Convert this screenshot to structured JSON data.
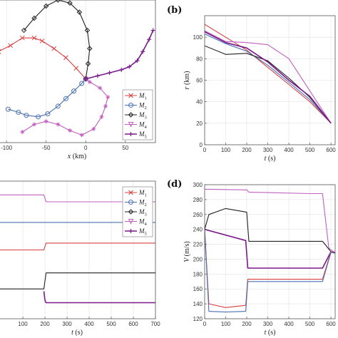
{
  "figure": {
    "colors": {
      "M1": "#d94040",
      "M2": "#4a70b0",
      "M3": "#222222",
      "M4": "#c060c0",
      "M5": "#7a1a8a"
    }
  },
  "chart_data": [
    {
      "id": "a",
      "type": "line",
      "panel_label": "",
      "xlabel": "x (km)",
      "ylabel": "",
      "xlim": [
        -110,
        88
      ],
      "ylim": [
        -42,
        52
      ],
      "xticks": [
        -100,
        -50,
        0,
        50
      ],
      "yticks": [],
      "grid": true,
      "legend": {
        "placement": "lower-right",
        "entries": [
          "M1",
          "M2",
          "M3",
          "M4",
          "M5"
        ]
      },
      "series": [
        {
          "name": "M1",
          "marker": "x",
          "color": "#d94040",
          "x": [
            -110,
            -95,
            -80,
            -65,
            -55,
            -40,
            -25,
            -12,
            0
          ],
          "y": [
            18,
            22,
            27,
            27,
            25,
            20,
            14,
            7,
            0
          ]
        },
        {
          "name": "M2",
          "marker": "o",
          "color": "#4a70b0",
          "x": [
            -98,
            -85,
            -75,
            -60,
            -48,
            -35,
            -25,
            -15,
            -5,
            0
          ],
          "y": [
            -20,
            -22,
            -24,
            -25,
            -23,
            -18,
            -13,
            -8,
            -3,
            0
          ]
        },
        {
          "name": "M3",
          "marker": "diamond",
          "color": "#222222",
          "x": [
            -78,
            -65,
            -50,
            -35,
            -20,
            -8,
            2,
            5,
            3,
            0
          ],
          "y": [
            32,
            40,
            48,
            52,
            50,
            44,
            32,
            20,
            10,
            0
          ]
        },
        {
          "name": "M4",
          "marker": "star",
          "color": "#c060c0",
          "x": [
            -80,
            -65,
            -50,
            -35,
            -20,
            -5,
            10,
            20,
            25,
            28,
            18,
            5,
            0
          ],
          "y": [
            -35,
            -30,
            -28,
            -30,
            -34,
            -37,
            -33,
            -25,
            -18,
            -12,
            -6,
            -2,
            0
          ]
        },
        {
          "name": "M5",
          "marker": "plus",
          "color": "#7a1a8a",
          "x": [
            0,
            15,
            30,
            45,
            55,
            65,
            72,
            80,
            85
          ],
          "y": [
            0,
            2,
            4,
            6,
            8,
            12,
            18,
            26,
            32
          ]
        }
      ]
    },
    {
      "id": "b",
      "type": "line",
      "panel_label": "(b)",
      "xlabel": "t (s)",
      "ylabel": "r (km)",
      "xlim": [
        0,
        620
      ],
      "ylim": [
        0,
        120
      ],
      "xticks": [
        0,
        100,
        200,
        300,
        400,
        500,
        600
      ],
      "yticks": [
        0,
        20,
        40,
        60,
        80,
        100
      ],
      "grid": true,
      "series": [
        {
          "name": "M1",
          "color": "#d94040",
          "x": [
            0,
            100,
            200,
            300,
            400,
            500,
            600
          ],
          "y": [
            112,
            100,
            88,
            72,
            56,
            40,
            20
          ]
        },
        {
          "name": "M2",
          "color": "#4a70b0",
          "x": [
            0,
            100,
            200,
            300,
            400,
            500,
            600
          ],
          "y": [
            103,
            94,
            87,
            74,
            58,
            42,
            20
          ]
        },
        {
          "name": "M3",
          "color": "#222222",
          "x": [
            0,
            100,
            200,
            300,
            400,
            500,
            600
          ],
          "y": [
            92,
            84,
            85,
            78,
            62,
            44,
            20
          ]
        },
        {
          "name": "M4",
          "color": "#c060c0",
          "x": [
            0,
            100,
            200,
            300,
            400,
            500,
            600
          ],
          "y": [
            106,
            96,
            95,
            93,
            80,
            50,
            20
          ]
        },
        {
          "name": "M5",
          "color": "#7a1a8a",
          "x": [
            0,
            100,
            200,
            300,
            400,
            500,
            600
          ],
          "y": [
            105,
            95,
            90,
            77,
            60,
            45,
            20
          ]
        }
      ]
    },
    {
      "id": "c",
      "type": "line",
      "panel_label": "",
      "xlabel": "t (s)",
      "ylabel": "",
      "xlim": [
        -10,
        700
      ],
      "ylim": [
        0,
        6
      ],
      "xticks": [
        100,
        200,
        300,
        400,
        500,
        600,
        700
      ],
      "yticks": [],
      "grid": true,
      "legend": {
        "placement": "upper-right",
        "entries": [
          "M1",
          "M2",
          "M3",
          "M4",
          "M5"
        ]
      },
      "series": [
        {
          "name": "M4",
          "color": "#c060c0",
          "x": [
            -10,
            195,
            205,
            700
          ],
          "y": [
            5.4,
            5.4,
            5.1,
            5.1
          ]
        },
        {
          "name": "M2",
          "color": "#4a70b0",
          "x": [
            -10,
            700
          ],
          "y": [
            4.2,
            4.2
          ]
        },
        {
          "name": "M1",
          "color": "#d94040",
          "x": [
            -10,
            195,
            205,
            700
          ],
          "y": [
            3.0,
            3.0,
            3.3,
            3.3
          ]
        },
        {
          "name": "M3",
          "color": "#222222",
          "x": [
            -10,
            195,
            205,
            700
          ],
          "y": [
            1.3,
            1.3,
            2.0,
            2.0
          ]
        },
        {
          "name": "M5",
          "color": "#7a1a8a",
          "x": [
            195,
            200,
            205,
            700
          ],
          "y": [
            1.2,
            0.8,
            0.7,
            0.7
          ]
        }
      ]
    },
    {
      "id": "d",
      "type": "line",
      "panel_label": "(d)",
      "xlabel": "t (s)",
      "ylabel": "V (m/s)",
      "xlim": [
        0,
        620
      ],
      "ylim": [
        120,
        300
      ],
      "xticks": [
        0,
        100,
        200,
        300,
        400,
        500,
        600
      ],
      "yticks": [
        120,
        140,
        160,
        180,
        200,
        220,
        240,
        260,
        280,
        300
      ],
      "grid": true,
      "series": [
        {
          "name": "M4",
          "color": "#c060c0",
          "x": [
            0,
            200,
            210,
            500,
            560,
            590,
            620
          ],
          "y": [
            294,
            293,
            290,
            288,
            288,
            215,
            208
          ]
        },
        {
          "name": "M3",
          "color": "#222222",
          "x": [
            0,
            20,
            100,
            200,
            210,
            500,
            560,
            600,
            620
          ],
          "y": [
            240,
            260,
            268,
            263,
            224,
            224,
            224,
            210,
            208
          ]
        },
        {
          "name": "M5",
          "color": "#7a1a8a",
          "x": [
            0,
            195,
            205,
            500,
            560,
            600,
            620
          ],
          "y": [
            240,
            225,
            188,
            188,
            188,
            210,
            209
          ]
        },
        {
          "name": "M1",
          "color": "#d94040",
          "x": [
            0,
            20,
            100,
            195,
            205,
            500,
            560,
            600,
            620
          ],
          "y": [
            240,
            140,
            135,
            138,
            173,
            173,
            173,
            210,
            208
          ]
        },
        {
          "name": "M2",
          "color": "#4a70b0",
          "x": [
            0,
            20,
            100,
            195,
            205,
            500,
            560,
            600,
            620
          ],
          "y": [
            240,
            130,
            129,
            130,
            170,
            170,
            170,
            209,
            208
          ]
        }
      ]
    }
  ]
}
